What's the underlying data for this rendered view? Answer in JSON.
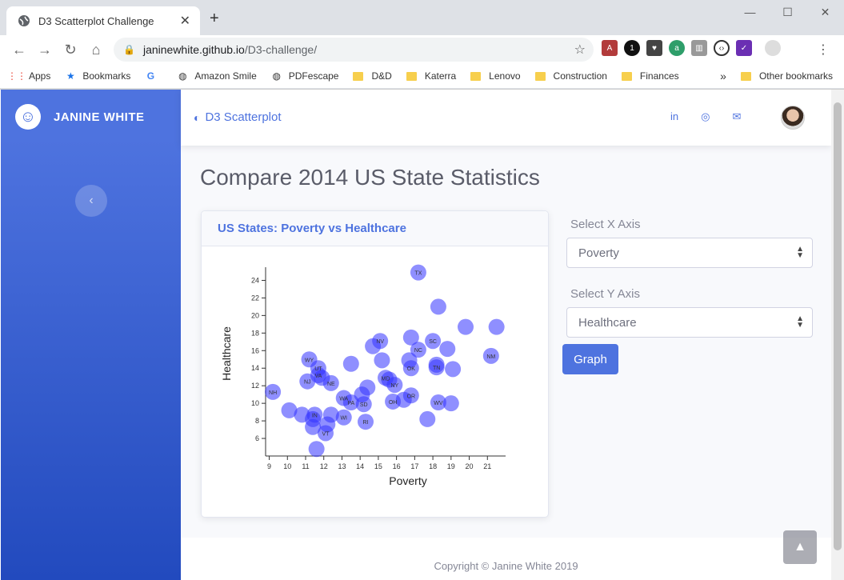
{
  "browser": {
    "tab_title": "D3 Scatterplot Challenge",
    "url_host": "janinewhite.github.io",
    "url_path": "/D3-challenge/",
    "bookmarks": [
      "Apps",
      "Bookmarks",
      "Amazon Smile",
      "PDFescape",
      "D&D",
      "Katerra",
      "Lenovo",
      "Construction",
      "Finances"
    ],
    "other_bookmarks": "Other bookmarks",
    "more_glyph": "»"
  },
  "sidebar": {
    "brand": "JANINE WHITE",
    "toggle_glyph": "‹"
  },
  "topbar": {
    "title": "D3 Scatterplot",
    "icons": [
      "linkedin-icon",
      "github-icon",
      "mail-icon"
    ]
  },
  "main": {
    "heading": "Compare 2014 US State Statistics",
    "card_title": "US States: Poverty vs Healthcare",
    "x_label": "Select X Axis",
    "x_value": "Poverty",
    "y_label": "Select Y Axis",
    "y_value": "Healthcare",
    "button": "Graph"
  },
  "footer": {
    "copyright": "Copyright © Janine White 2019"
  },
  "colors": {
    "accent": "#4e73df",
    "point": "#3333ff"
  },
  "chart_data": {
    "type": "scatter",
    "xlabel": "Poverty",
    "ylabel": "Healthcare",
    "xlim": [
      8.8,
      22
    ],
    "ylim": [
      4,
      25.5
    ],
    "xticks": [
      9,
      10,
      11,
      12,
      13,
      14,
      15,
      16,
      17,
      18,
      19,
      20,
      21
    ],
    "yticks": [
      6,
      8,
      10,
      12,
      14,
      16,
      18,
      20,
      22,
      24
    ],
    "points": [
      {
        "x": 17.2,
        "y": 24.9,
        "label": "TX"
      },
      {
        "x": 18.3,
        "y": 21.0,
        "label": ""
      },
      {
        "x": 19.8,
        "y": 18.7,
        "label": ""
      },
      {
        "x": 21.5,
        "y": 18.7,
        "label": ""
      },
      {
        "x": 16.8,
        "y": 17.5,
        "label": ""
      },
      {
        "x": 15.1,
        "y": 17.1,
        "label": "NV"
      },
      {
        "x": 14.7,
        "y": 16.5,
        "label": ""
      },
      {
        "x": 18.0,
        "y": 17.1,
        "label": "SC"
      },
      {
        "x": 17.2,
        "y": 16.1,
        "label": "NC"
      },
      {
        "x": 18.8,
        "y": 16.2,
        "label": ""
      },
      {
        "x": 21.2,
        "y": 15.4,
        "label": "NM"
      },
      {
        "x": 15.2,
        "y": 14.9,
        "label": ""
      },
      {
        "x": 16.7,
        "y": 14.9,
        "label": ""
      },
      {
        "x": 16.8,
        "y": 14.0,
        "label": "OK"
      },
      {
        "x": 18.2,
        "y": 14.4,
        "label": ""
      },
      {
        "x": 18.2,
        "y": 14.1,
        "label": "TN"
      },
      {
        "x": 19.1,
        "y": 13.9,
        "label": ""
      },
      {
        "x": 13.5,
        "y": 14.5,
        "label": ""
      },
      {
        "x": 11.2,
        "y": 15.0,
        "label": "WY"
      },
      {
        "x": 11.7,
        "y": 14.0,
        "label": "UT"
      },
      {
        "x": 11.7,
        "y": 13.2,
        "label": "VA"
      },
      {
        "x": 11.9,
        "y": 12.9,
        "label": ""
      },
      {
        "x": 11.1,
        "y": 12.5,
        "label": "NJ"
      },
      {
        "x": 12.4,
        "y": 12.3,
        "label": "NE"
      },
      {
        "x": 15.4,
        "y": 12.9,
        "label": "MD"
      },
      {
        "x": 15.6,
        "y": 12.7,
        "label": ""
      },
      {
        "x": 15.9,
        "y": 12.1,
        "label": "NY"
      },
      {
        "x": 14.4,
        "y": 11.8,
        "label": ""
      },
      {
        "x": 14.1,
        "y": 11.0,
        "label": ""
      },
      {
        "x": 9.2,
        "y": 11.3,
        "label": "NH"
      },
      {
        "x": 16.8,
        "y": 10.9,
        "label": "OR"
      },
      {
        "x": 13.1,
        "y": 10.6,
        "label": "WA"
      },
      {
        "x": 13.5,
        "y": 10.1,
        "label": "PA"
      },
      {
        "x": 14.2,
        "y": 9.9,
        "label": "SD"
      },
      {
        "x": 15.8,
        "y": 10.2,
        "label": "OH"
      },
      {
        "x": 16.4,
        "y": 10.4,
        "label": ""
      },
      {
        "x": 18.3,
        "y": 10.1,
        "label": "WV"
      },
      {
        "x": 19.0,
        "y": 10.0,
        "label": ""
      },
      {
        "x": 10.1,
        "y": 9.2,
        "label": ""
      },
      {
        "x": 10.8,
        "y": 8.7,
        "label": ""
      },
      {
        "x": 11.5,
        "y": 8.7,
        "label": "IN"
      },
      {
        "x": 11.4,
        "y": 8.2,
        "label": ""
      },
      {
        "x": 12.4,
        "y": 8.7,
        "label": ""
      },
      {
        "x": 13.1,
        "y": 8.4,
        "label": "WI"
      },
      {
        "x": 14.3,
        "y": 7.9,
        "label": "RI"
      },
      {
        "x": 17.7,
        "y": 8.2,
        "label": ""
      },
      {
        "x": 12.2,
        "y": 7.6,
        "label": ""
      },
      {
        "x": 11.4,
        "y": 7.3,
        "label": ""
      },
      {
        "x": 12.1,
        "y": 6.6,
        "label": "VT"
      },
      {
        "x": 11.6,
        "y": 4.8,
        "label": ""
      }
    ]
  }
}
